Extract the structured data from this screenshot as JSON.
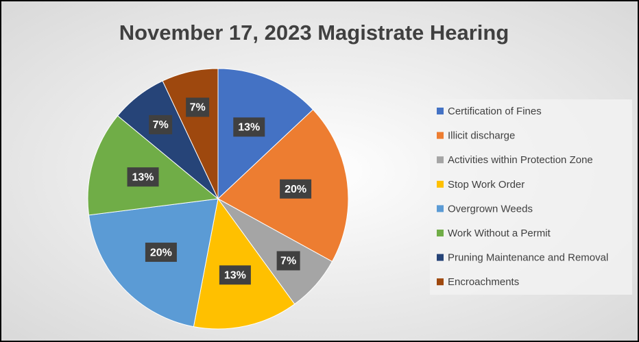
{
  "chart_data": {
    "type": "pie",
    "title": "November 17, 2023 Magistrate Hearing",
    "categories": [
      "Certification of Fines",
      "Illicit discharge",
      "Activities within Protection Zone",
      "Stop Work Order",
      "Overgrown Weeds",
      "Work Without a Permit",
      "Pruning Maintenance and Removal",
      "Encroachments"
    ],
    "values": [
      13,
      20,
      7,
      13,
      20,
      13,
      7,
      7
    ],
    "value_labels": [
      "13%",
      "20%",
      "7%",
      "13%",
      "20%",
      "13%",
      "7%",
      "7%"
    ],
    "colors": [
      "#4472c4",
      "#ed7d31",
      "#a5a5a5",
      "#ffc000",
      "#5b9bd5",
      "#70ad47",
      "#264478",
      "#9e480e"
    ],
    "legend": "right"
  }
}
